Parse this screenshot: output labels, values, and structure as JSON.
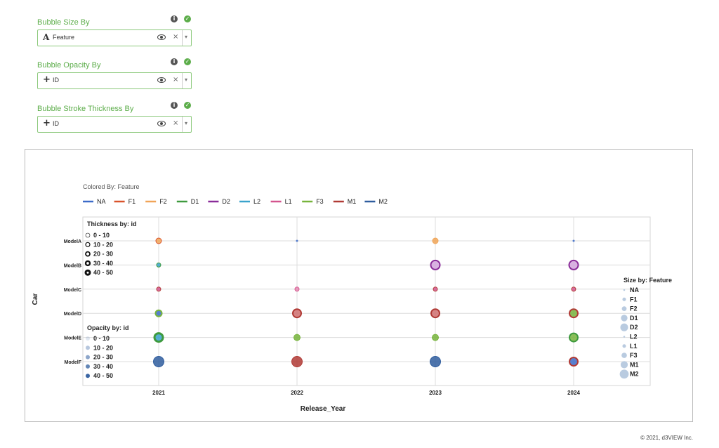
{
  "controls": [
    {
      "label": "Bubble Size By",
      "value": "Feature",
      "type_icon": "text-type-icon"
    },
    {
      "label": "Bubble Opacity By",
      "value": "ID",
      "type_icon": "numeric-type-icon"
    },
    {
      "label": "Bubble Stroke Thickness By",
      "value": "ID",
      "type_icon": "numeric-type-icon"
    }
  ],
  "icons": {
    "info": "i",
    "check": "✓",
    "text_type": "A",
    "numeric_type": "+",
    "clear": "×",
    "caret": "▾"
  },
  "chart_data": {
    "type": "scatter",
    "colored_by_label": "Colored By: Feature",
    "legend": [
      {
        "name": "NA",
        "color": "#3c6bc8"
      },
      {
        "name": "F1",
        "color": "#d9532b"
      },
      {
        "name": "F2",
        "color": "#f0a558"
      },
      {
        "name": "D1",
        "color": "#3e9a3e"
      },
      {
        "name": "D2",
        "color": "#8a2c99"
      },
      {
        "name": "L2",
        "color": "#3aa3cc"
      },
      {
        "name": "L1",
        "color": "#d4558e"
      },
      {
        "name": "F3",
        "color": "#77b43c"
      },
      {
        "name": "M1",
        "color": "#b03a35"
      },
      {
        "name": "M2",
        "color": "#2f5d9e"
      }
    ],
    "xlabel": "Release_Year",
    "ylabel": "Car",
    "x_categories": [
      "2021",
      "2022",
      "2023",
      "2024"
    ],
    "y_categories": [
      "ModelA",
      "ModelB",
      "ModelC",
      "ModelD",
      "ModelE",
      "ModelF"
    ],
    "points": [
      {
        "x": "2021",
        "y": "ModelA",
        "feature": "F2",
        "fill": "#f0a558",
        "stroke": "#d9532b",
        "thickness": 1
      },
      {
        "x": "2022",
        "y": "ModelA",
        "feature": "NA",
        "fill": "#3c6bc8",
        "stroke": "#3c6bc8",
        "thickness": 0
      },
      {
        "x": "2023",
        "y": "ModelA",
        "feature": "F2",
        "fill": "#f0a558",
        "stroke": "#f0a558",
        "thickness": 1
      },
      {
        "x": "2024",
        "y": "ModelA",
        "feature": "NA",
        "fill": "#3c6bc8",
        "stroke": "#3c6bc8",
        "thickness": 0
      },
      {
        "x": "2021",
        "y": "ModelB",
        "feature": "F1",
        "fill": "#3aa3cc",
        "stroke": "#3e9a3e",
        "thickness": 1
      },
      {
        "x": "2023",
        "y": "ModelB",
        "feature": "D2",
        "fill": "#d4a6dd",
        "stroke": "#8a2c99",
        "thickness": 2
      },
      {
        "x": "2024",
        "y": "ModelB",
        "feature": "D2",
        "fill": "#d4a6dd",
        "stroke": "#8a2c99",
        "thickness": 2
      },
      {
        "x": "2021",
        "y": "ModelC",
        "feature": "L1",
        "fill": "#d4558e",
        "stroke": "#b03a35",
        "thickness": 1
      },
      {
        "x": "2022",
        "y": "ModelC",
        "feature": "L1",
        "fill": "#e58cb3",
        "stroke": "#d4558e",
        "thickness": 1
      },
      {
        "x": "2023",
        "y": "ModelC",
        "feature": "L1",
        "fill": "#d4558e",
        "stroke": "#b03a35",
        "thickness": 1
      },
      {
        "x": "2024",
        "y": "ModelC",
        "feature": "L1",
        "fill": "#d4558e",
        "stroke": "#b03a35",
        "thickness": 1
      },
      {
        "x": "2021",
        "y": "ModelD",
        "feature": "F3",
        "fill": "#3c6bc8",
        "stroke": "#77b43c",
        "thickness": 2
      },
      {
        "x": "2022",
        "y": "ModelD",
        "feature": "M1",
        "fill": "#d07070",
        "stroke": "#b03a35",
        "thickness": 2
      },
      {
        "x": "2023",
        "y": "ModelD",
        "feature": "M1",
        "fill": "#d07070",
        "stroke": "#b03a35",
        "thickness": 2
      },
      {
        "x": "2024",
        "y": "ModelD",
        "feature": "M1",
        "fill": "#77b43c",
        "stroke": "#b03a35",
        "thickness": 2
      },
      {
        "x": "2021",
        "y": "ModelE",
        "feature": "M1",
        "fill": "#3aa3cc",
        "stroke": "#3e9a3e",
        "thickness": 3
      },
      {
        "x": "2022",
        "y": "ModelE",
        "feature": "F3",
        "fill": "#77b43c",
        "stroke": "#77b43c",
        "thickness": 1
      },
      {
        "x": "2023",
        "y": "ModelE",
        "feature": "F3",
        "fill": "#77b43c",
        "stroke": "#77b43c",
        "thickness": 1
      },
      {
        "x": "2024",
        "y": "ModelE",
        "feature": "M1",
        "fill": "#77b43c",
        "stroke": "#3e9a3e",
        "thickness": 2
      },
      {
        "x": "2021",
        "y": "ModelF",
        "feature": "M2",
        "fill": "#2f5d9e",
        "stroke": "#2f5d9e",
        "thickness": 1
      },
      {
        "x": "2022",
        "y": "ModelF",
        "feature": "M2",
        "fill": "#b03a35",
        "stroke": "#b03a35",
        "thickness": 1
      },
      {
        "x": "2023",
        "y": "ModelF",
        "feature": "M2",
        "fill": "#2f5d9e",
        "stroke": "#2f5d9e",
        "thickness": 1
      },
      {
        "x": "2024",
        "y": "ModelF",
        "feature": "M1",
        "fill": "#3c6bc8",
        "stroke": "#b03a35",
        "thickness": 2
      }
    ],
    "thickness_legend": {
      "title": "Thickness by: id",
      "items": [
        "0 - 10",
        "10 - 20",
        "20 - 30",
        "30 - 40",
        "40 - 50"
      ],
      "stroke_levels": [
        1,
        2,
        3,
        4,
        5
      ]
    },
    "opacity_legend": {
      "title": "Opacity by: id",
      "items": [
        "0 - 10",
        "10 - 20",
        "20 - 30",
        "30 - 40",
        "40 - 50"
      ],
      "opacity_levels": [
        0.15,
        0.35,
        0.55,
        0.75,
        0.95
      ],
      "color": "#2f5d9e"
    },
    "size_legend": {
      "title": "Size by: Feature",
      "items": [
        "NA",
        "F1",
        "F2",
        "D1",
        "D2",
        "L2",
        "L1",
        "F3",
        "M1",
        "M2"
      ],
      "color": "#b9cbe0"
    },
    "grid": true
  },
  "footer": {
    "copyright": "© 2021, d3VIEW Inc."
  }
}
